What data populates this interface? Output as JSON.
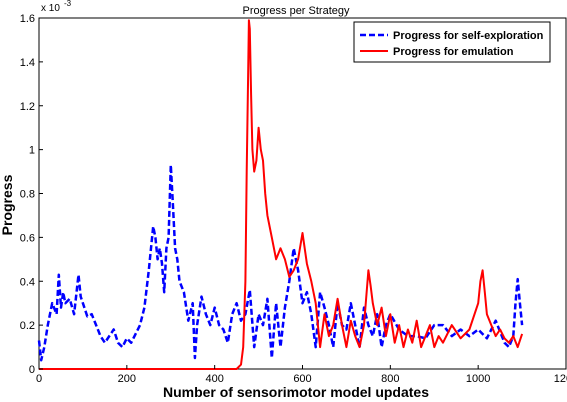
{
  "chart_data": {
    "type": "line",
    "title": "Progress per Strategy",
    "xlabel": "Number of sensorimotor model updates",
    "ylabel": "Progress",
    "y_exponent_label": "x 10",
    "y_exponent_power": "-3",
    "xlim": [
      0,
      1200
    ],
    "ylim": [
      0,
      1.6
    ],
    "x_ticks": [
      0,
      200,
      400,
      600,
      800,
      1000,
      1200
    ],
    "x_tick_labels": [
      "0",
      "200",
      "400",
      "600",
      "800",
      "1000",
      "1200"
    ],
    "y_ticks": [
      0,
      0.2,
      0.4,
      0.6,
      0.8,
      1.0,
      1.2,
      1.4,
      1.6
    ],
    "y_tick_labels": [
      "0",
      "0.2",
      "0.4",
      "0.6",
      "0.8",
      "1",
      "1.2",
      "1.4",
      "1.6"
    ],
    "grid": false,
    "legend_position": "top-right",
    "series": [
      {
        "name": "Progress for self-exploration",
        "color": "#0000ff",
        "style": "dashed",
        "x": [
          0,
          5,
          12,
          20,
          30,
          40,
          45,
          50,
          55,
          60,
          70,
          80,
          90,
          95,
          100,
          110,
          120,
          130,
          140,
          150,
          160,
          170,
          180,
          190,
          200,
          210,
          220,
          230,
          240,
          250,
          255,
          260,
          265,
          270,
          275,
          280,
          285,
          290,
          295,
          300,
          305,
          310,
          315,
          320,
          330,
          340,
          350,
          355,
          360,
          370,
          380,
          390,
          400,
          410,
          420,
          430,
          440,
          450,
          460,
          470,
          480,
          490,
          500,
          510,
          520,
          530,
          540,
          550,
          560,
          570,
          580,
          590,
          600,
          610,
          620,
          630,
          640,
          650,
          660,
          670,
          680,
          690,
          700,
          710,
          720,
          730,
          740,
          750,
          760,
          770,
          780,
          790,
          800,
          820,
          840,
          860,
          880,
          900,
          920,
          940,
          960,
          980,
          1000,
          1020,
          1040,
          1060,
          1070,
          1080,
          1085,
          1090,
          1095,
          1100
        ],
        "values": [
          0.13,
          0.04,
          0.1,
          0.2,
          0.3,
          0.25,
          0.43,
          0.28,
          0.35,
          0.3,
          0.32,
          0.25,
          0.43,
          0.33,
          0.3,
          0.24,
          0.25,
          0.2,
          0.15,
          0.12,
          0.15,
          0.18,
          0.12,
          0.1,
          0.14,
          0.12,
          0.16,
          0.2,
          0.28,
          0.45,
          0.55,
          0.65,
          0.6,
          0.5,
          0.55,
          0.48,
          0.35,
          0.55,
          0.6,
          0.93,
          0.75,
          0.55,
          0.5,
          0.4,
          0.35,
          0.22,
          0.3,
          0.05,
          0.2,
          0.33,
          0.25,
          0.2,
          0.28,
          0.2,
          0.18,
          0.12,
          0.25,
          0.3,
          0.22,
          0.25,
          0.36,
          0.1,
          0.25,
          0.2,
          0.32,
          0.05,
          0.3,
          0.1,
          0.28,
          0.4,
          0.55,
          0.45,
          0.3,
          0.35,
          0.25,
          0.1,
          0.35,
          0.28,
          0.2,
          0.1,
          0.3,
          0.2,
          0.18,
          0.3,
          0.2,
          0.1,
          0.28,
          0.2,
          0.15,
          0.25,
          0.1,
          0.2,
          0.25,
          0.18,
          0.15,
          0.15,
          0.14,
          0.2,
          0.2,
          0.15,
          0.18,
          0.15,
          0.18,
          0.14,
          0.22,
          0.12,
          0.1,
          0.15,
          0.3,
          0.41,
          0.3,
          0.2
        ]
      },
      {
        "name": "Progress for emulation",
        "color": "#ff0000",
        "style": "solid",
        "x": [
          0,
          100,
          200,
          300,
          400,
          450,
          460,
          465,
          470,
          473,
          476,
          478,
          480,
          483,
          486,
          490,
          495,
          500,
          505,
          510,
          515,
          520,
          530,
          540,
          550,
          560,
          570,
          580,
          590,
          600,
          610,
          620,
          630,
          640,
          650,
          660,
          670,
          680,
          690,
          700,
          710,
          720,
          730,
          740,
          750,
          755,
          760,
          770,
          780,
          790,
          800,
          810,
          820,
          830,
          840,
          850,
          860,
          870,
          880,
          890,
          900,
          910,
          920,
          940,
          960,
          980,
          1000,
          1005,
          1010,
          1015,
          1020,
          1030,
          1040,
          1050,
          1060,
          1070,
          1080,
          1090,
          1100
        ],
        "values": [
          0,
          0,
          0,
          0,
          0,
          0,
          0.02,
          0.1,
          0.4,
          0.9,
          1.3,
          1.59,
          1.55,
          1.25,
          1.0,
          0.9,
          0.95,
          1.1,
          1.0,
          0.95,
          0.8,
          0.7,
          0.6,
          0.5,
          0.55,
          0.5,
          0.42,
          0.45,
          0.5,
          0.62,
          0.48,
          0.4,
          0.3,
          0.1,
          0.25,
          0.15,
          0.2,
          0.32,
          0.2,
          0.1,
          0.22,
          0.15,
          0.1,
          0.2,
          0.45,
          0.38,
          0.3,
          0.2,
          0.28,
          0.15,
          0.25,
          0.12,
          0.2,
          0.1,
          0.18,
          0.12,
          0.22,
          0.1,
          0.15,
          0.2,
          0.1,
          0.15,
          0.12,
          0.2,
          0.14,
          0.18,
          0.3,
          0.4,
          0.45,
          0.35,
          0.25,
          0.2,
          0.15,
          0.18,
          0.14,
          0.12,
          0.15,
          0.1,
          0.16
        ]
      }
    ]
  }
}
